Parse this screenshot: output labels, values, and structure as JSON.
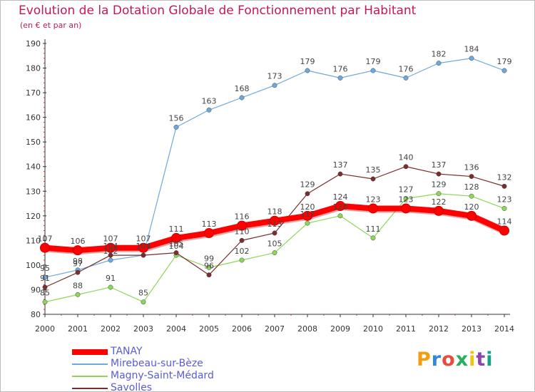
{
  "header": {
    "title": "Evolution de la Dotation Globale de Fonctionnement par Habitant",
    "subtitle": "(en € et par an)"
  },
  "logo": {
    "letters": [
      "P",
      "r",
      "o",
      "x",
      "i",
      "t",
      "i"
    ],
    "colors": [
      "#f39c12",
      "#2e86de",
      "#e74c3c",
      "#27ae60",
      "#f1c40f",
      "#8e44ad",
      "#16a085"
    ]
  },
  "chart_data": {
    "type": "line",
    "x": [
      2000,
      2001,
      2002,
      2003,
      2004,
      2005,
      2006,
      2007,
      2008,
      2009,
      2010,
      2011,
      2012,
      2013,
      2014
    ],
    "ylim": [
      80,
      190
    ],
    "yticks": [
      80,
      90,
      100,
      110,
      120,
      130,
      140,
      150,
      160,
      170,
      180,
      190
    ],
    "grid": false,
    "legend_position": "bottom-left",
    "series": [
      {
        "name": "Mirebeau-sur-Bèze",
        "color": "#6fa8dc",
        "values": [
          95,
          98,
          102,
          104,
          156,
          163,
          168,
          173,
          179,
          176,
          179,
          176,
          182,
          184,
          179
        ],
        "labels": [
          "95",
          "98",
          "102",
          "104",
          "156",
          "163",
          "168",
          "173",
          "179",
          "176",
          "179",
          "176",
          "182",
          "184",
          "179"
        ]
      },
      {
        "name": "Magny-Saint-Médard",
        "color": "#8ed65a",
        "values": [
          85,
          88,
          91,
          85,
          104,
          99,
          102,
          105,
          117,
          120,
          111,
          127,
          129,
          128,
          123
        ],
        "labels": [
          "85",
          "88",
          "91",
          "85",
          "104",
          "99",
          "102",
          "105",
          "117",
          "120",
          "111",
          "127",
          "129",
          "128",
          "123"
        ]
      },
      {
        "name": "Savolles",
        "color": "#7b2d2d",
        "values": [
          91,
          97,
          104,
          104,
          105,
          96,
          110,
          113,
          129,
          137,
          135,
          140,
          137,
          136,
          132
        ],
        "labels": [
          "91",
          "97",
          "104",
          "104",
          "105",
          "96",
          "110",
          "113",
          "129",
          "137",
          "135",
          "140",
          "137",
          "136",
          "132"
        ]
      },
      {
        "name": "TANAY",
        "color": "#ff0000",
        "values": [
          107,
          106,
          107,
          107,
          111,
          113,
          116,
          118,
          120,
          124,
          123,
          123,
          122,
          120,
          114
        ],
        "labels": [
          "107",
          "106",
          "107",
          "107",
          "111",
          "113",
          "116",
          "118",
          "120",
          "124",
          "123",
          "123",
          "122",
          "120",
          "114"
        ]
      }
    ],
    "legend_order": [
      "TANAY",
      "Mirebeau-sur-Bèze",
      "Magny-Saint-Médard",
      "Savolles"
    ]
  }
}
